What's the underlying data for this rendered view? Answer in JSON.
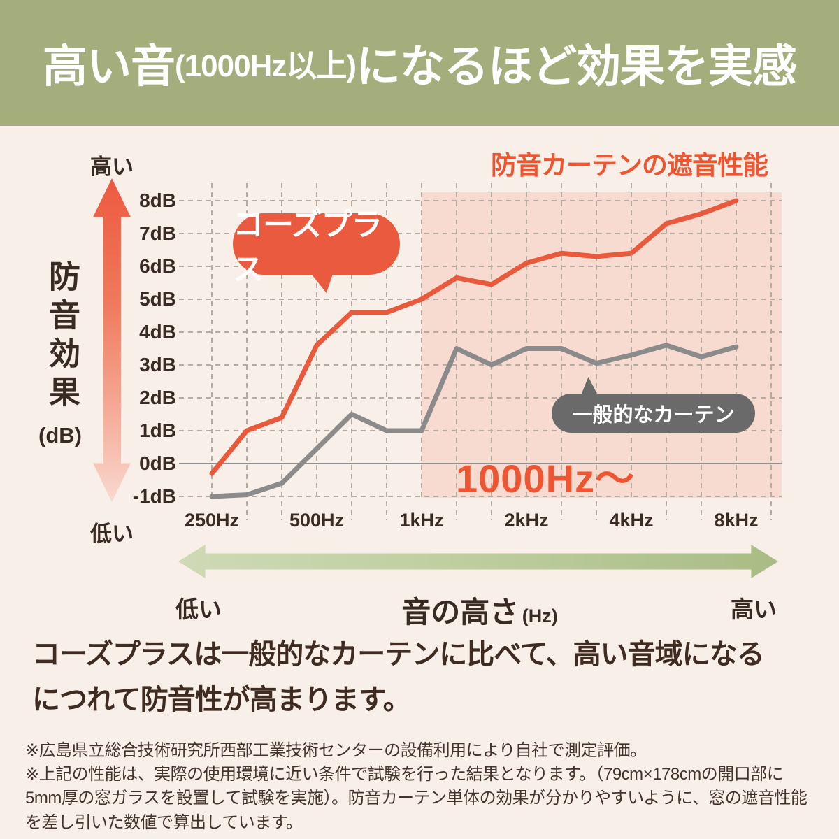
{
  "header": {
    "part1": "高い音",
    "part2": "(1000Hz以上)",
    "part3": "になるほど効果を実感"
  },
  "chart": {
    "title": "防音カーテンの遮音性能",
    "y_axis": {
      "title_vertical": "防音効果",
      "unit": "(dB)",
      "arrow_top": "高い",
      "arrow_bottom": "低い"
    },
    "highlight_label": "1000Hz〜"
  },
  "bubbles": {
    "cozeplus": {
      "label": "コーズプラス"
    },
    "general": {
      "label": "一般的なカーテン"
    }
  },
  "chart_data": {
    "type": "line",
    "x_frequencies_hz": [
      250,
      315,
      400,
      500,
      630,
      800,
      1000,
      1250,
      1600,
      2000,
      2500,
      3150,
      4000,
      5000,
      6300,
      8000
    ],
    "x_tick_labels": [
      "250Hz",
      "500Hz",
      "1kHz",
      "2kHz",
      "4kHz",
      "8kHz"
    ],
    "y_tick_labels": [
      "8dB",
      "7dB",
      "6dB",
      "5dB",
      "4dB",
      "3dB",
      "2dB",
      "1dB",
      "0dB",
      "-1dB"
    ],
    "y_tick_values": [
      8,
      7,
      6,
      5,
      4,
      3,
      2,
      1,
      0,
      -1
    ],
    "ylim": [
      -1,
      8
    ],
    "ylabel": "防音効果 (dB)",
    "xlabel": "音の高さ (Hz)",
    "grid": "dashed",
    "series": [
      {
        "name": "コーズプラス",
        "color": "#e95a3c",
        "values": [
          -0.3,
          1.0,
          1.4,
          3.6,
          4.6,
          4.6,
          5.0,
          5.65,
          5.45,
          6.1,
          6.4,
          6.3,
          6.4,
          7.3,
          7.6,
          8.0
        ]
      },
      {
        "name": "一般的なカーテン",
        "color": "#8b8b8b",
        "values": [
          -1.0,
          -0.95,
          -0.6,
          0.45,
          1.5,
          1.0,
          1.0,
          3.5,
          3.0,
          3.5,
          3.5,
          3.05,
          3.3,
          3.6,
          3.25,
          3.55
        ]
      }
    ],
    "highlight_region": {
      "label": "1000Hz〜",
      "from_hz": 1000,
      "color": "#f8dbd0"
    }
  },
  "bottom_axis": {
    "low": "低い",
    "label": "音の高さ",
    "unit": "(Hz)",
    "high": "高い"
  },
  "body": {
    "line1": "コーズプラスは一般的なカーテンに比べて、高い音域になる",
    "line2": "につれて防音性が高まります。"
  },
  "footnotes": [
    "※広島県立総合技術研究所西部工業技術センターの設備利用により自社で測定評価。",
    "※上記の性能は、実際の使用環境に近い条件で試験を行った結果となります。（79cm×178cmの開口部に",
    "5mm厚の窓ガラスを設置して試験を実施）。防音カーテン単体の効果が分かりやすいように、窓の遮音性能",
    "を差し引いた数値で算出しています。"
  ],
  "palette": {
    "banner_green": "#a3ae7c",
    "background_cream": "#f8efe8",
    "highlight_pink": "#f8dbd0",
    "accent_orange": "#ee5531",
    "line_orange": "#e95a3c",
    "line_gray": "#8b8b8b",
    "bubble_gray": "#6a6a6a",
    "text_dark": "#3a2b22",
    "gridline": "#b5aba1",
    "zero_line": "#909090",
    "arrow_green_light": "#cfdab6",
    "arrow_green_dark": "#a9bc85"
  }
}
